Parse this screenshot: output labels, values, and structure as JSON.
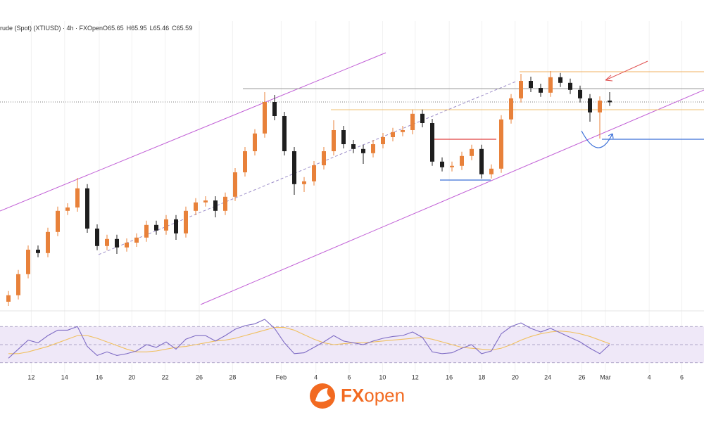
{
  "chart_data": {
    "type": "candlestick",
    "symbol": "rude (Spot) (XTIUSD) · 4h · FXOpen",
    "ohlc_labels": [
      "O",
      "H",
      "L",
      "C"
    ],
    "up_color": "#e8813a",
    "down_color": "#1e1e1e",
    "ylim": [
      58.35,
      68.35
    ],
    "xlim": [
      -0.857,
      71.57
    ],
    "xticks": [
      {
        "value": 2.36,
        "label": "12"
      },
      {
        "value": 5.79,
        "label": "14"
      },
      {
        "value": 9.36,
        "label": "16"
      },
      {
        "value": 12.71,
        "label": "20"
      },
      {
        "value": 16.14,
        "label": "22"
      },
      {
        "value": 19.64,
        "label": "26"
      },
      {
        "value": 23.07,
        "label": "28"
      },
      {
        "value": 28.07,
        "label": "Feb"
      },
      {
        "value": 31.64,
        "label": "4"
      },
      {
        "value": 35.07,
        "label": "6"
      },
      {
        "value": 38.5,
        "label": "10"
      },
      {
        "value": 41.86,
        "label": "12"
      },
      {
        "value": 45.36,
        "label": "16"
      },
      {
        "value": 48.71,
        "label": "18"
      },
      {
        "value": 52.14,
        "label": "20"
      },
      {
        "value": 55.5,
        "label": "24"
      },
      {
        "value": 59,
        "label": "26"
      },
      {
        "value": 61.43,
        "label": "Mar"
      },
      {
        "value": 65.93,
        "label": "4"
      },
      {
        "value": 69.29,
        "label": "6"
      }
    ],
    "grid": true,
    "series": [
      {
        "open": [
          58.5,
          58.73,
          59.48,
          60.35,
          60.23,
          60.98,
          61.73,
          61.85,
          62.53,
          61.1,
          60.48,
          60.73,
          60.43,
          60.6,
          60.78,
          61.23,
          61.03,
          61.43,
          60.93,
          61.73,
          62.03,
          62.1,
          61.73,
          62.23,
          63.1,
          63.85,
          64.48,
          65.6,
          65.1,
          63.85,
          62.68,
          62.78,
          63.35,
          63.85,
          64.6,
          64.1,
          63.93,
          63.78,
          64.1,
          64.35,
          64.53,
          64.6,
          65.18,
          64.85,
          63.48,
          63.28,
          63.33,
          63.68,
          63.93,
          63.03,
          63.23,
          64.98,
          65.73,
          66.35,
          66.1,
          65.93,
          66.48,
          66.28,
          66.03,
          65.73,
          65.23,
          65.65
        ],
        "high": [
          58.88,
          59.63,
          60.5,
          60.5,
          61.13,
          61.88,
          62.0,
          62.9,
          62.68,
          61.25,
          60.88,
          60.88,
          60.75,
          60.93,
          61.38,
          61.38,
          61.58,
          61.58,
          61.88,
          62.18,
          62.25,
          62.25,
          62.38,
          63.25,
          64.0,
          64.63,
          65.95,
          65.85,
          65.25,
          64.0,
          62.93,
          63.5,
          64.0,
          64.95,
          64.75,
          64.25,
          64.08,
          64.25,
          64.5,
          64.68,
          64.75,
          65.33,
          65.33,
          65.0,
          63.63,
          63.48,
          63.83,
          64.08,
          64.08,
          63.38,
          65.13,
          65.88,
          66.6,
          66.5,
          66.25,
          66.7,
          66.63,
          66.43,
          66.18,
          65.88,
          65.8,
          65.95
        ],
        "low": [
          58.35,
          58.58,
          59.33,
          60.08,
          60.08,
          60.83,
          61.58,
          61.7,
          60.95,
          60.33,
          60.33,
          60.2,
          60.28,
          60.45,
          60.63,
          60.88,
          60.88,
          60.7,
          60.78,
          61.58,
          61.88,
          61.5,
          61.58,
          62.08,
          62.95,
          63.7,
          64.33,
          64.95,
          63.7,
          62.3,
          62.4,
          62.63,
          63.2,
          63.7,
          63.95,
          63.78,
          63.4,
          63.63,
          63.95,
          64.2,
          64.38,
          64.45,
          64.7,
          63.33,
          63.13,
          63.13,
          63.18,
          63.53,
          62.88,
          62.88,
          63.08,
          64.83,
          65.58,
          65.95,
          65.78,
          65.78,
          66.13,
          65.88,
          65.58,
          64.9,
          64.3,
          65.46
        ],
        "close": [
          58.73,
          59.48,
          60.35,
          60.23,
          60.98,
          61.73,
          61.85,
          62.53,
          61.1,
          60.48,
          60.73,
          60.43,
          60.6,
          60.78,
          61.23,
          61.03,
          61.43,
          60.93,
          61.73,
          62.03,
          62.1,
          61.73,
          62.23,
          63.1,
          63.85,
          64.48,
          65.6,
          65.1,
          63.85,
          62.68,
          62.78,
          63.35,
          63.85,
          64.6,
          64.1,
          63.93,
          63.78,
          64.1,
          64.35,
          64.53,
          64.6,
          65.18,
          64.85,
          63.48,
          63.28,
          63.33,
          63.68,
          63.93,
          63.03,
          63.23,
          64.98,
          65.73,
          66.35,
          66.1,
          65.93,
          66.48,
          66.28,
          66.03,
          65.73,
          65.23,
          65.65,
          65.59
        ]
      }
    ],
    "rsi": {
      "ylim": [
        15,
        85
      ],
      "yticks": [
        30,
        50,
        70
      ],
      "color": "#7e6bc4",
      "ma_color": "#f0c060",
      "band_color": "#efe8f8",
      "values": [
        35,
        45,
        55,
        52,
        60,
        66,
        66,
        70,
        48,
        38,
        42,
        38,
        40,
        43,
        50,
        47,
        53,
        45,
        56,
        60,
        60,
        54,
        60,
        67,
        71,
        73,
        78,
        68,
        52,
        40,
        41,
        47,
        53,
        60,
        54,
        52,
        50,
        54,
        57,
        59,
        60,
        64,
        58,
        42,
        40,
        41,
        46,
        50,
        40,
        43,
        62,
        70,
        74,
        68,
        64,
        68,
        63,
        58,
        53,
        46,
        40,
        50
      ],
      "ma": [
        40,
        40,
        42,
        45,
        48,
        52,
        56,
        60,
        60,
        57,
        53,
        49,
        45,
        42,
        42,
        43,
        45,
        47,
        48,
        50,
        52,
        54,
        55,
        57,
        60,
        63,
        66,
        69,
        69,
        66,
        61,
        56,
        52,
        50,
        51,
        52,
        52,
        53,
        54,
        55,
        56,
        57,
        58,
        56,
        53,
        50,
        47,
        46,
        45,
        44,
        46,
        50,
        55,
        59,
        62,
        64,
        65,
        64,
        62,
        59,
        55,
        51
      ]
    },
    "brand": [
      "FX",
      "open"
    ]
  }
}
